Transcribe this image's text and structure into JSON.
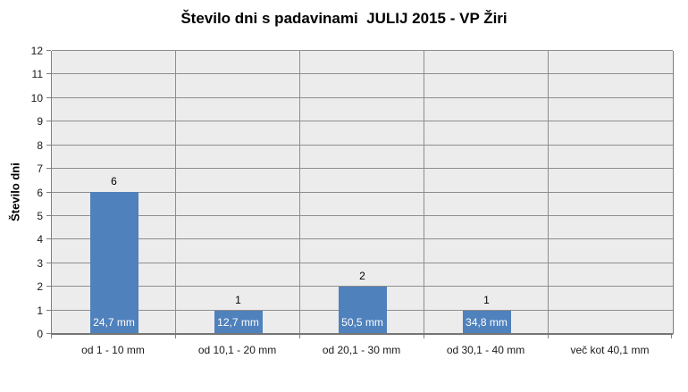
{
  "chart_data": {
    "type": "bar",
    "title": "Število dni s padavinami  JULIJ 2015 - VP Žiri",
    "ylabel": "Število dni",
    "xlabel": "",
    "categories": [
      "od 1 - 10 mm",
      "od 10,1 - 20 mm",
      "od 20,1 - 30 mm",
      "od 30,1 - 40 mm",
      "več kot 40,1 mm"
    ],
    "values": [
      6,
      1,
      2,
      1,
      0
    ],
    "bar_labels_mm": [
      "24,7 mm",
      "12,7 mm",
      "50,5 mm",
      "34,8 mm",
      null
    ],
    "ylim": [
      0,
      12
    ],
    "ytick_step": 1,
    "grid": "horizontal gridlines + vertical category separators",
    "legend": "none",
    "colors": {
      "bar": "#4F81BD",
      "plot_background": "#ECECEC",
      "gridline": "#8E8E8E",
      "axis_line": "#7F7F7F",
      "text": "#1A1A1A",
      "bar_label_text": "#FFFFFF",
      "page_background": "#FFFFFF"
    }
  }
}
